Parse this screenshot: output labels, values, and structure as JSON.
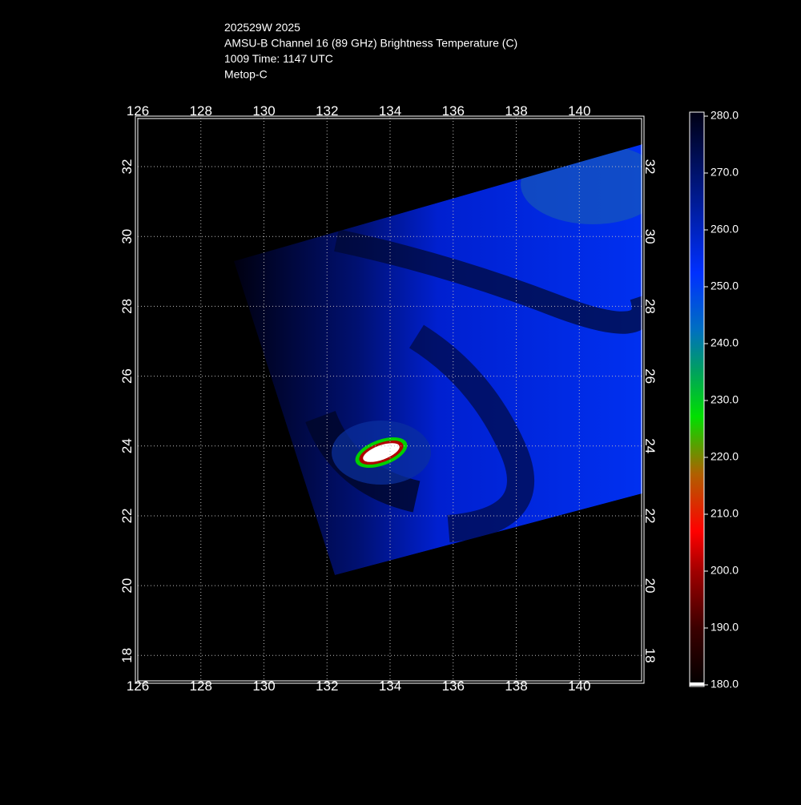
{
  "chart_data": {
    "type": "map",
    "title_lines": [
      "202529W 2025",
      "AMSU-B Channel 16 (89 GHz) Brightness Temperature (C)",
      "1009 Time: 1147 UTC",
      "Metop-C"
    ],
    "xlim": [
      126,
      142
    ],
    "ylim": [
      17.25,
      33.4
    ],
    "xticks": [
      126,
      128,
      130,
      132,
      134,
      136,
      138,
      140
    ],
    "yticks": [
      18,
      20,
      22,
      24,
      26,
      28,
      30,
      32
    ],
    "grid": true,
    "colorbar": {
      "lim": [
        180,
        280
      ],
      "ticks": [
        {
          "value": 180,
          "label": "180.0"
        },
        {
          "value": 190,
          "label": "190.0"
        },
        {
          "value": 200,
          "label": "200.0"
        },
        {
          "value": 210,
          "label": "210.0"
        },
        {
          "value": 220,
          "label": "220.0"
        },
        {
          "value": 230,
          "label": "230.0"
        },
        {
          "value": 240,
          "label": "240.0"
        },
        {
          "value": 250,
          "label": "250.0"
        },
        {
          "value": 260,
          "label": "260.0"
        },
        {
          "value": 270,
          "label": "270.0"
        },
        {
          "value": 280,
          "label": "280.0"
        }
      ]
    }
  }
}
